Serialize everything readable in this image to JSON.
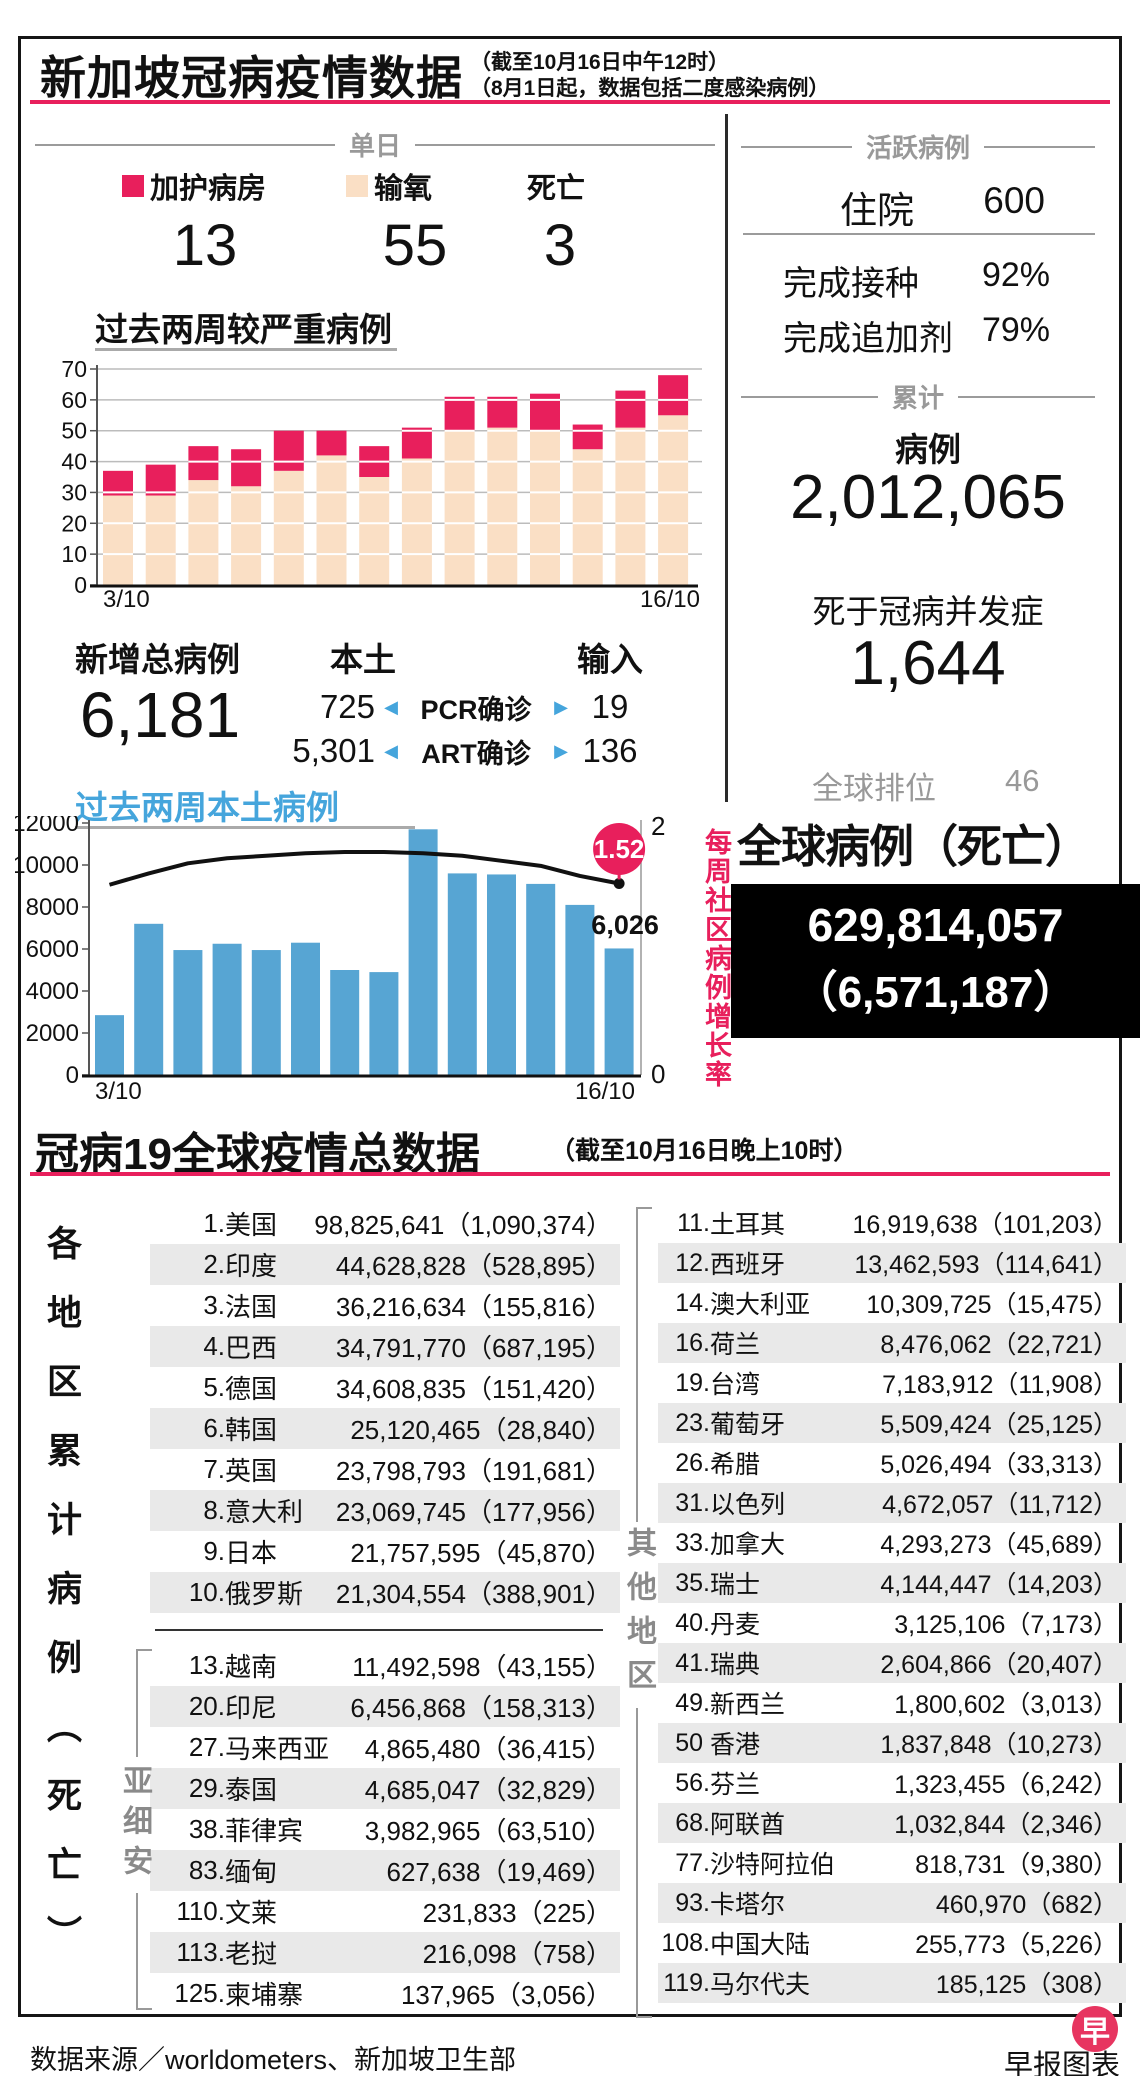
{
  "header": {
    "title": "新加坡冠病疫情数据",
    "note1": "（截至10月16日中午12时）",
    "note2": "（8月1日起，数据包括二度感染病例）"
  },
  "daily": {
    "section_label": "单日",
    "legend": [
      {
        "label": "加护病房",
        "value": "13",
        "swatch": "#e81f5c"
      },
      {
        "label": "输氧",
        "value": "55",
        "swatch": "#fadfc5"
      },
      {
        "label": "死亡",
        "value": "3",
        "swatch": ""
      }
    ],
    "severe_chart_title": "过去两周较严重病例"
  },
  "new_cases": {
    "total_label": "新增总病例",
    "total": "6,181",
    "local_label": "本土",
    "import_label": "输入",
    "left_arrow": "◀",
    "right_arrow": "▶",
    "rows": [
      {
        "local": "725",
        "method": "PCR确诊",
        "imported": "19"
      },
      {
        "local": "5,301",
        "method": "ART确诊",
        "imported": "136"
      }
    ],
    "local_chart_title": "过去两周本土病例"
  },
  "active": {
    "section_label": "活跃病例",
    "hospital_label": "住院",
    "hospital_value": "600",
    "vacc_label": "完成接种",
    "vacc_value": "92%",
    "booster_label": "完成追加剂",
    "booster_value": "79%"
  },
  "cumulative": {
    "section_label": "累计",
    "cases_label": "病例",
    "cases_value": "2,012,065",
    "deaths_label": "死于冠病并发症",
    "deaths_value": "1,644",
    "rank_label": "全球排位",
    "rank_value": "46",
    "global_heading": "全球病例（死亡）",
    "global_cases": "629,814,057",
    "global_deaths": "（6,571,187）"
  },
  "global_section": {
    "title": "冠病19全球疫情总数据",
    "note": "（截至10月16日晚上10时）",
    "side_label": "各地区累计病例（死亡）",
    "asean_label": "亚细安",
    "others_label": "其他地区",
    "left_top_rows": [
      {
        "rank": "1.",
        "name": "美国",
        "value": "98,825,641（1,090,374）"
      },
      {
        "rank": "2.",
        "name": "印度",
        "value": "44,628,828（528,895）"
      },
      {
        "rank": "3.",
        "name": "法国",
        "value": "36,216,634（155,816）"
      },
      {
        "rank": "4.",
        "name": "巴西",
        "value": "34,791,770（687,195）"
      },
      {
        "rank": "5.",
        "name": "德国",
        "value": "34,608,835（151,420）"
      },
      {
        "rank": "6.",
        "name": "韩国",
        "value": "25,120,465（28,840）"
      },
      {
        "rank": "7.",
        "name": "英国",
        "value": "23,798,793（191,681）"
      },
      {
        "rank": "8.",
        "name": "意大利",
        "value": "23,069,745（177,956）"
      },
      {
        "rank": "9.",
        "name": "日本",
        "value": "21,757,595（45,870）"
      },
      {
        "rank": "10.",
        "name": "俄罗斯",
        "value": "21,304,554（388,901）"
      }
    ],
    "asean_rows": [
      {
        "rank": "13.",
        "name": "越南",
        "value": "11,492,598（43,155）"
      },
      {
        "rank": "20.",
        "name": "印尼",
        "value": "6,456,868（158,313）"
      },
      {
        "rank": "27.",
        "name": "马来西亚",
        "value": "4,865,480（36,415）"
      },
      {
        "rank": "29.",
        "name": "泰国",
        "value": "4,685,047（32,829）"
      },
      {
        "rank": "38.",
        "name": "菲律宾",
        "value": "3,982,965（63,510）"
      },
      {
        "rank": "83.",
        "name": "缅甸",
        "value": "627,638（19,469）"
      },
      {
        "rank": "110.",
        "name": "文莱",
        "value": "231,833（225）"
      },
      {
        "rank": "113.",
        "name": "老挝",
        "value": "216,098（758）"
      },
      {
        "rank": "125.",
        "name": "柬埔寨",
        "value": "137,965（3,056）"
      }
    ],
    "right_rows": [
      {
        "rank": "11.",
        "name": "土耳其",
        "value": "16,919,638（101,203）"
      },
      {
        "rank": "12.",
        "name": "西班牙",
        "value": "13,462,593（114,641）"
      },
      {
        "rank": "14.",
        "name": "澳大利亚",
        "value": "10,309,725（15,475）"
      },
      {
        "rank": "16.",
        "name": "荷兰",
        "value": "8,476,062（22,721）"
      },
      {
        "rank": "19.",
        "name": "台湾",
        "value": "7,183,912（11,908）"
      },
      {
        "rank": "23.",
        "name": "葡萄牙",
        "value": "5,509,424（25,125）"
      },
      {
        "rank": "26.",
        "name": "希腊",
        "value": "5,026,494（33,313）"
      },
      {
        "rank": "31.",
        "name": "以色列",
        "value": "4,672,057（11,712）"
      },
      {
        "rank": "33.",
        "name": "加拿大",
        "value": "4,293,273（45,689）"
      },
      {
        "rank": "35.",
        "name": "瑞士",
        "value": "4,144,447（14,203）"
      },
      {
        "rank": "40.",
        "name": "丹麦",
        "value": "3,125,106（7,173）"
      },
      {
        "rank": "41.",
        "name": "瑞典",
        "value": "2,604,866（20,407）"
      },
      {
        "rank": "49.",
        "name": "新西兰",
        "value": "1,800,602（3,013）"
      },
      {
        "rank": "50 ",
        "name": "香港",
        "value": "1,837,848（10,273）"
      },
      {
        "rank": "56.",
        "name": "芬兰",
        "value": "1,323,455（6,242）"
      },
      {
        "rank": "68.",
        "name": "阿联酋",
        "value": "1,032,844（2,346）"
      },
      {
        "rank": "77.",
        "name": "沙特阿拉伯",
        "value": "818,731（9,380）"
      },
      {
        "rank": "93.",
        "name": "卡塔尔",
        "value": "460,970（682）"
      },
      {
        "rank": "108.",
        "name": "中国大陆",
        "value": "255,773（5,226）"
      },
      {
        "rank": "119.",
        "name": "马尔代夫",
        "value": "185,125（308）"
      }
    ]
  },
  "footer": {
    "source": "数据来源／worldometers、新加坡卫生部",
    "credit": "早报图表",
    "logo_char": "早"
  },
  "colors": {
    "accent_pink": "#e81f5c",
    "peach": "#fadfc5",
    "bar_blue": "#57a5d3",
    "text_blue": "#45a5dc",
    "header_gray": "#999999",
    "row_alt": "#e9e9e9"
  },
  "chart_data": [
    {
      "id": "severe",
      "type": "bar",
      "stacked": true,
      "title": "过去两周较严重病例",
      "x": [
        "3/10",
        "4/10",
        "5/10",
        "6/10",
        "7/10",
        "8/10",
        "9/10",
        "10/10",
        "11/10",
        "12/10",
        "13/10",
        "14/10",
        "15/10",
        "16/10"
      ],
      "x_tick_labels": [
        "3/10",
        "16/10"
      ],
      "ylim": [
        0,
        70
      ],
      "yticks": [
        0,
        10,
        20,
        30,
        40,
        50,
        60,
        70
      ],
      "grid": true,
      "series": [
        {
          "name": "输氧",
          "color": "#fadfc5",
          "values": [
            29,
            29,
            34,
            32,
            37,
            42,
            35,
            41,
            50,
            51,
            50,
            44,
            51,
            55
          ]
        },
        {
          "name": "加护病房",
          "color": "#e81f5c",
          "values": [
            8,
            10,
            11,
            12,
            13,
            8,
            10,
            10,
            11,
            10,
            12,
            8,
            12,
            13
          ]
        }
      ]
    },
    {
      "id": "local",
      "type": "bar+line",
      "title": "过去两周本土病例",
      "x": [
        "3/10",
        "4/10",
        "5/10",
        "6/10",
        "7/10",
        "8/10",
        "9/10",
        "10/10",
        "11/10",
        "12/10",
        "13/10",
        "14/10",
        "15/10",
        "16/10"
      ],
      "x_tick_labels": [
        "3/10",
        "16/10"
      ],
      "ylim_left": [
        0,
        12000
      ],
      "yticks_left": [
        0,
        2000,
        4000,
        6000,
        8000,
        10000,
        12000
      ],
      "ylim_right": [
        0,
        2
      ],
      "yticks_right": [
        2,
        0
      ],
      "right_axis_label": "每周社区病例增长率",
      "bars": {
        "name": "本土病例",
        "color": "#57a5d3",
        "values": [
          2850,
          7200,
          5950,
          6250,
          5950,
          6300,
          5000,
          4900,
          11700,
          9600,
          9550,
          9100,
          8100,
          6026
        ]
      },
      "line": {
        "name": "每周社区病例增长率",
        "color": "#111111",
        "values": [
          1.51,
          1.6,
          1.68,
          1.72,
          1.74,
          1.76,
          1.77,
          1.77,
          1.76,
          1.74,
          1.7,
          1.66,
          1.58,
          1.52
        ]
      },
      "annotations": {
        "last_bar_label": "6,026",
        "line_end_label": "1.52"
      }
    }
  ]
}
